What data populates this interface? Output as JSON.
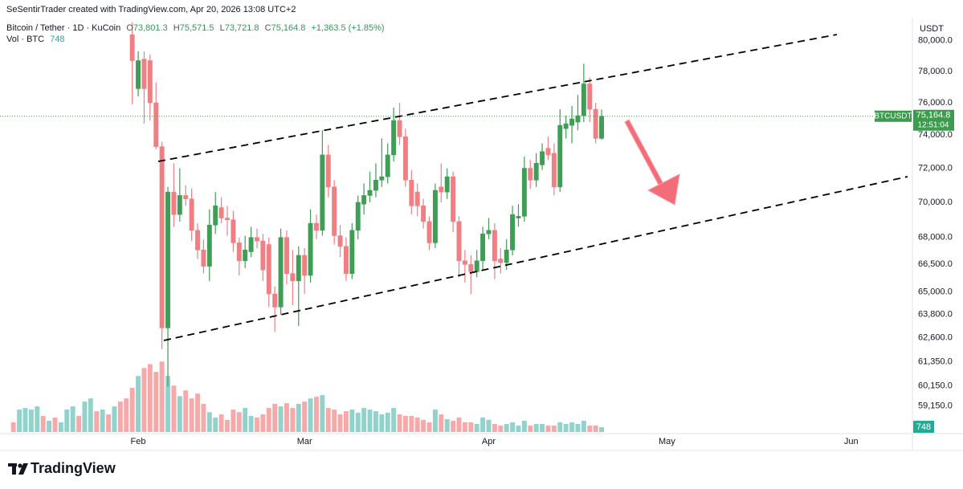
{
  "header": "SeSentirTrader created with TradingView.com, Apr 20, 2026 13:08 UTC+2",
  "footer": "TradingView",
  "chart_data": {
    "type": "candlestick",
    "legend": {
      "symbol": "Bitcoin / Tether · 1D · KuCoin",
      "ohlc": [
        {
          "prefix": "O",
          "text": "73,801.3"
        },
        {
          "prefix": "H",
          "text": "75,571.5"
        },
        {
          "prefix": "L",
          "text": "73,721.8"
        },
        {
          "prefix": "C",
          "text": "75,164.8"
        }
      ],
      "change": "+1,363.5 (+1.85%)",
      "volume_name": "Vol · BTC",
      "volume_text": "748"
    },
    "currency": "USDT",
    "price_badge": {
      "symbol": "BTCUSDT",
      "price": "75,164.8",
      "countdown": "12:51:04",
      "color": "#3c9c4d"
    },
    "volume_badge_color": "#22ab94",
    "log_scale": true,
    "grid": false,
    "up_color": "#3f9e55",
    "down_color": "#f07f84",
    "ylim": [
      57900,
      81220
    ],
    "yticks": [
      {
        "value": 80000,
        "label": "80,000.0"
      },
      {
        "value": 78000,
        "label": "78,000.0"
      },
      {
        "value": 76000,
        "label": "76,000.0"
      },
      {
        "value": 74000,
        "label": "74,000.0"
      },
      {
        "value": 72000,
        "label": "72,000.0"
      },
      {
        "value": 70000,
        "label": "70,000.0"
      },
      {
        "value": 68000,
        "label": "68,000.0"
      },
      {
        "value": 66500,
        "label": "66,500.0"
      },
      {
        "value": 65000,
        "label": "65,000.0"
      },
      {
        "value": 63800,
        "label": "63,800.0"
      },
      {
        "value": 62600,
        "label": "62,600.0"
      },
      {
        "value": 61350,
        "label": "61,350.0"
      },
      {
        "value": 60150,
        "label": "60,150.0"
      },
      {
        "value": 59150,
        "label": "59,150.0"
      }
    ],
    "volume_lim": [
      0,
      64000
    ],
    "categories": [
      null,
      null,
      null,
      null,
      null,
      null,
      null,
      null,
      null,
      null,
      null,
      null,
      null,
      null,
      null,
      null,
      null,
      null,
      null,
      null,
      null,
      "Feb",
      null,
      null,
      null,
      null,
      null,
      null,
      null,
      null,
      null,
      null,
      null,
      null,
      null,
      null,
      null,
      null,
      null,
      null,
      null,
      null,
      null,
      null,
      null,
      null,
      null,
      null,
      null,
      "Mar",
      null,
      null,
      null,
      null,
      null,
      null,
      null,
      null,
      null,
      null,
      null,
      null,
      null,
      null,
      null,
      null,
      null,
      null,
      null,
      null,
      null,
      null,
      null,
      null,
      null,
      null,
      null,
      null,
      null,
      null,
      "Apr",
      null,
      null,
      null,
      null,
      null,
      null,
      null,
      null,
      null,
      null,
      null,
      null,
      null,
      null,
      null,
      null,
      null,
      null,
      null,
      null,
      null,
      null,
      null,
      null,
      null,
      null,
      null,
      null,
      null,
      "May",
      null,
      null,
      null,
      null,
      null,
      null,
      null,
      null,
      null,
      null,
      null,
      null,
      null,
      null,
      null,
      null,
      null,
      null,
      null,
      null,
      null,
      null,
      null,
      null,
      null,
      null,
      null,
      null,
      null,
      null,
      "Jun",
      null,
      null,
      null,
      null,
      null,
      null,
      null,
      null,
      null
    ],
    "ohlc": {
      "open": [
        null,
        null,
        null,
        null,
        null,
        null,
        null,
        null,
        null,
        null,
        null,
        null,
        null,
        null,
        null,
        null,
        null,
        null,
        null,
        null,
        80400,
        76900,
        78800,
        78700,
        76000,
        73300,
        63100,
        70600,
        69300,
        70400,
        70200,
        68400,
        67300,
        66400,
        68700,
        69700,
        69100,
        69000,
        67700,
        66700,
        67200,
        68000,
        67800,
        67600,
        64900,
        64200,
        68000,
        66000,
        65600,
        67000,
        65900,
        68800,
        68400,
        72800,
        70900,
        68100,
        67500,
        66000,
        68400,
        69900,
        70400,
        70700,
        71300,
        71500,
        72800,
        74900,
        73900,
        71300,
        70600,
        69800,
        68900,
        67700,
        70900,
        70600,
        71500,
        68900,
        66700,
        66500,
        66100,
        66700,
        68200,
        68400,
        66800,
        66600,
        67300,
        69100,
        69200,
        72000,
        71300,
        72200,
        73200,
        72900,
        70900,
        74400,
        74600,
        74800,
        75200,
        77200,
        75600,
        73801.3,
        null,
        null,
        null,
        null,
        null,
        null,
        null,
        null,
        null,
        null,
        null,
        null,
        null,
        null,
        null,
        null,
        null,
        null,
        null,
        null,
        null,
        null,
        null,
        null,
        null,
        null,
        null,
        null,
        null,
        null,
        null,
        null,
        null,
        null,
        null,
        null,
        null,
        null,
        null,
        null,
        null,
        null,
        null,
        null,
        null,
        null,
        null,
        null,
        null,
        null,
        null
      ],
      "high": [
        null,
        null,
        null,
        null,
        null,
        null,
        null,
        null,
        null,
        null,
        null,
        null,
        null,
        null,
        null,
        null,
        null,
        null,
        null,
        null,
        81500,
        79300,
        79300,
        79100,
        77300,
        73600,
        70900,
        72300,
        72000,
        71000,
        70800,
        68800,
        67900,
        69600,
        70600,
        70300,
        69800,
        69500,
        68000,
        68100,
        68600,
        68500,
        68200,
        68000,
        65300,
        68500,
        68400,
        67300,
        67500,
        67400,
        69600,
        69300,
        74300,
        73400,
        71300,
        68700,
        68000,
        68800,
        70400,
        71100,
        71800,
        72300,
        73800,
        73500,
        75700,
        76000,
        74400,
        71900,
        71100,
        70200,
        69200,
        71100,
        72300,
        72000,
        71800,
        69200,
        67300,
        67000,
        67300,
        68600,
        69100,
        68800,
        67400,
        67900,
        69800,
        69900,
        72700,
        72500,
        72900,
        73500,
        73900,
        73500,
        75600,
        75200,
        75800,
        76500,
        78500,
        77600,
        76000,
        75571.5,
        null,
        null,
        null,
        null,
        null,
        null,
        null,
        null,
        null,
        null,
        null,
        null,
        null,
        null,
        null,
        null,
        null,
        null,
        null,
        null,
        null,
        null,
        null,
        null,
        null,
        null,
        null,
        null,
        null,
        null,
        null,
        null,
        null,
        null,
        null,
        null,
        null,
        null,
        null,
        null,
        null,
        null,
        null,
        null,
        null,
        null,
        null,
        null,
        null,
        null,
        null
      ],
      "low": [
        null,
        null,
        null,
        null,
        null,
        null,
        null,
        null,
        null,
        null,
        null,
        null,
        null,
        null,
        null,
        null,
        null,
        null,
        null,
        null,
        75900,
        76400,
        74700,
        74900,
        73150,
        62000,
        60100,
        68600,
        68900,
        69800,
        67800,
        66800,
        66000,
        65600,
        68200,
        68800,
        68100,
        67200,
        65900,
        66300,
        66900,
        67400,
        65600,
        64200,
        62900,
        63800,
        65400,
        64300,
        63200,
        64900,
        65500,
        67900,
        68100,
        70300,
        67600,
        66900,
        65600,
        65700,
        67900,
        69300,
        70000,
        70300,
        70900,
        71100,
        72400,
        73400,
        70900,
        69300,
        69200,
        68500,
        67300,
        67400,
        70000,
        70200,
        68300,
        65800,
        65500,
        64900,
        65800,
        66200,
        67900,
        65700,
        66000,
        66200,
        67000,
        68600,
        68900,
        70800,
        70900,
        71900,
        72500,
        70400,
        70600,
        73800,
        73500,
        74300,
        74800,
        74800,
        73500,
        73721.8,
        null,
        null,
        null,
        null,
        null,
        null,
        null,
        null,
        null,
        null,
        null,
        null,
        null,
        null,
        null,
        null,
        null,
        null,
        null,
        null,
        null,
        null,
        null,
        null,
        null,
        null,
        null,
        null,
        null,
        null,
        null,
        null,
        null,
        null,
        null,
        null,
        null,
        null,
        null,
        null,
        null,
        null,
        null,
        null,
        null,
        null,
        null,
        null,
        null,
        null,
        null
      ],
      "close": [
        null,
        null,
        null,
        null,
        null,
        null,
        null,
        null,
        null,
        null,
        null,
        null,
        null,
        null,
        null,
        null,
        null,
        null,
        null,
        null,
        78700,
        78700,
        76900,
        76000,
        73300,
        63100,
        70600,
        69300,
        70400,
        70200,
        68400,
        67300,
        66400,
        68700,
        69800,
        69100,
        69000,
        67700,
        66700,
        67300,
        68000,
        67800,
        66200,
        64900,
        64200,
        68000,
        66000,
        65600,
        67000,
        65900,
        68800,
        68400,
        72800,
        70900,
        68100,
        67500,
        66000,
        68400,
        70000,
        70400,
        70700,
        71300,
        71500,
        72800,
        74900,
        73900,
        71300,
        69800,
        69800,
        68900,
        67700,
        70700,
        70600,
        71500,
        68900,
        66700,
        66500,
        66100,
        66700,
        68200,
        68400,
        66700,
        66600,
        67300,
        69300,
        69200,
        72000,
        71300,
        72300,
        73000,
        72800,
        70900,
        74600,
        74700,
        75000,
        75200,
        77200,
        75600,
        73800,
        75164.8,
        null,
        null,
        null,
        null,
        null,
        null,
        null,
        null,
        null,
        null,
        null,
        null,
        null,
        null,
        null,
        null,
        null,
        null,
        null,
        null,
        null,
        null,
        null,
        null,
        null,
        null,
        null,
        null,
        null,
        null,
        null,
        null,
        null,
        null,
        null,
        null,
        null,
        null,
        null,
        null,
        null,
        null,
        null,
        null,
        null,
        null,
        null,
        null,
        null,
        null,
        null
      ]
    },
    "volume": [
      1500,
      3500,
      3750,
      3500,
      4000,
      2500,
      1750,
      2250,
      1500,
      3500,
      4000,
      2500,
      4750,
      5250,
      3250,
      3500,
      2750,
      4000,
      4750,
      5250,
      6900,
      8750,
      10000,
      10600,
      9400,
      11000,
      8750,
      7250,
      5600,
      6500,
      5250,
      6000,
      4400,
      3100,
      2250,
      2750,
      1900,
      3500,
      3100,
      3750,
      2500,
      2250,
      2750,
      3750,
      4400,
      4000,
      4500,
      3750,
      4400,
      4750,
      5250,
      5500,
      5750,
      3750,
      3500,
      2750,
      3250,
      3500,
      3000,
      3750,
      3500,
      3250,
      2750,
      3000,
      3750,
      2750,
      2500,
      2500,
      2250,
      1900,
      1500,
      3500,
      2750,
      2000,
      1750,
      2250,
      1500,
      1500,
      1250,
      2250,
      1900,
      1250,
      1000,
      1250,
      1500,
      1000,
      1750,
      1000,
      1250,
      1250,
      1000,
      1000,
      1500,
      1250,
      1500,
      1250,
      1750,
      1000,
      1000,
      748,
      null,
      null,
      null,
      null,
      null,
      null,
      null,
      null,
      null,
      null,
      null,
      null,
      null,
      null,
      null,
      null,
      null,
      null,
      null,
      null,
      null,
      null,
      null,
      null,
      null,
      null,
      null,
      null,
      null,
      null,
      null,
      null,
      null,
      null,
      null,
      null,
      null,
      null,
      null,
      null,
      null,
      null,
      null,
      null,
      null,
      null,
      null,
      null,
      null,
      null,
      null
    ],
    "volume_colors": [
      "#f7a9a9",
      "#92d2cc",
      "#92d2cc",
      "#92d2cc",
      "#92d2cc",
      "#f7a9a9",
      "#92d2cc",
      "#f7a9a9",
      "#92d2cc",
      "#92d2cc",
      "#92d2cc",
      "#f7a9a9",
      "#92d2cc",
      "#92d2cc",
      "#f7a9a9",
      "#92d2cc",
      "#f7a9a9",
      "#92d2cc",
      "#f7a9a9",
      "#f7a9a9",
      "#f7a9a9",
      "#92d2cc",
      "#f7a9a9",
      "#f7a9a9",
      "#f7a9a9",
      "#f7a9a9",
      "#92d2cc",
      "#f7a9a9",
      "#92d2cc",
      "#f7a9a9",
      "#f7a9a9",
      "#f7a9a9",
      "#f7a9a9",
      "#92d2cc",
      "#92d2cc",
      "#f7a9a9",
      "#f7a9a9",
      "#f7a9a9",
      "#f7a9a9",
      "#92d2cc",
      "#92d2cc",
      "#f7a9a9",
      "#f7a9a9",
      "#f7a9a9",
      "#f7a9a9",
      "#92d2cc",
      "#f7a9a9",
      "#f7a9a9",
      "#92d2cc",
      "#f7a9a9",
      "#92d2cc",
      "#f7a9a9",
      "#92d2cc",
      "#f7a9a9",
      "#f7a9a9",
      "#f7a9a9",
      "#f7a9a9",
      "#92d2cc",
      "#92d2cc",
      "#92d2cc",
      "#92d2cc",
      "#92d2cc",
      "#92d2cc",
      "#92d2cc",
      "#92d2cc",
      "#f7a9a9",
      "#f7a9a9",
      "#f7a9a9",
      "#f7a9a9",
      "#f7a9a9",
      "#f7a9a9",
      "#92d2cc",
      "#f7a9a9",
      "#92d2cc",
      "#f7a9a9",
      "#f7a9a9",
      "#f7a9a9",
      "#f7a9a9",
      "#92d2cc",
      "#92d2cc",
      "#92d2cc",
      "#f7a9a9",
      "#f7a9a9",
      "#92d2cc",
      "#92d2cc",
      "#92d2cc",
      "#92d2cc",
      "#f7a9a9",
      "#92d2cc",
      "#92d2cc",
      "#f7a9a9",
      "#f7a9a9",
      "#92d2cc",
      "#92d2cc",
      "#92d2cc",
      "#92d2cc",
      "#92d2cc",
      "#f7a9a9",
      "#f7a9a9",
      "#92d2cc",
      null,
      null,
      null,
      null,
      null,
      null,
      null,
      null,
      null,
      null,
      null,
      null,
      null,
      null,
      null,
      null,
      null,
      null,
      null,
      null,
      null,
      null,
      null,
      null,
      null,
      null,
      null,
      null,
      null,
      null,
      null,
      null,
      null,
      null,
      null,
      null,
      null,
      null,
      null,
      null,
      null,
      null,
      null,
      null,
      null,
      null,
      null,
      null,
      null,
      null,
      null
    ]
  }
}
